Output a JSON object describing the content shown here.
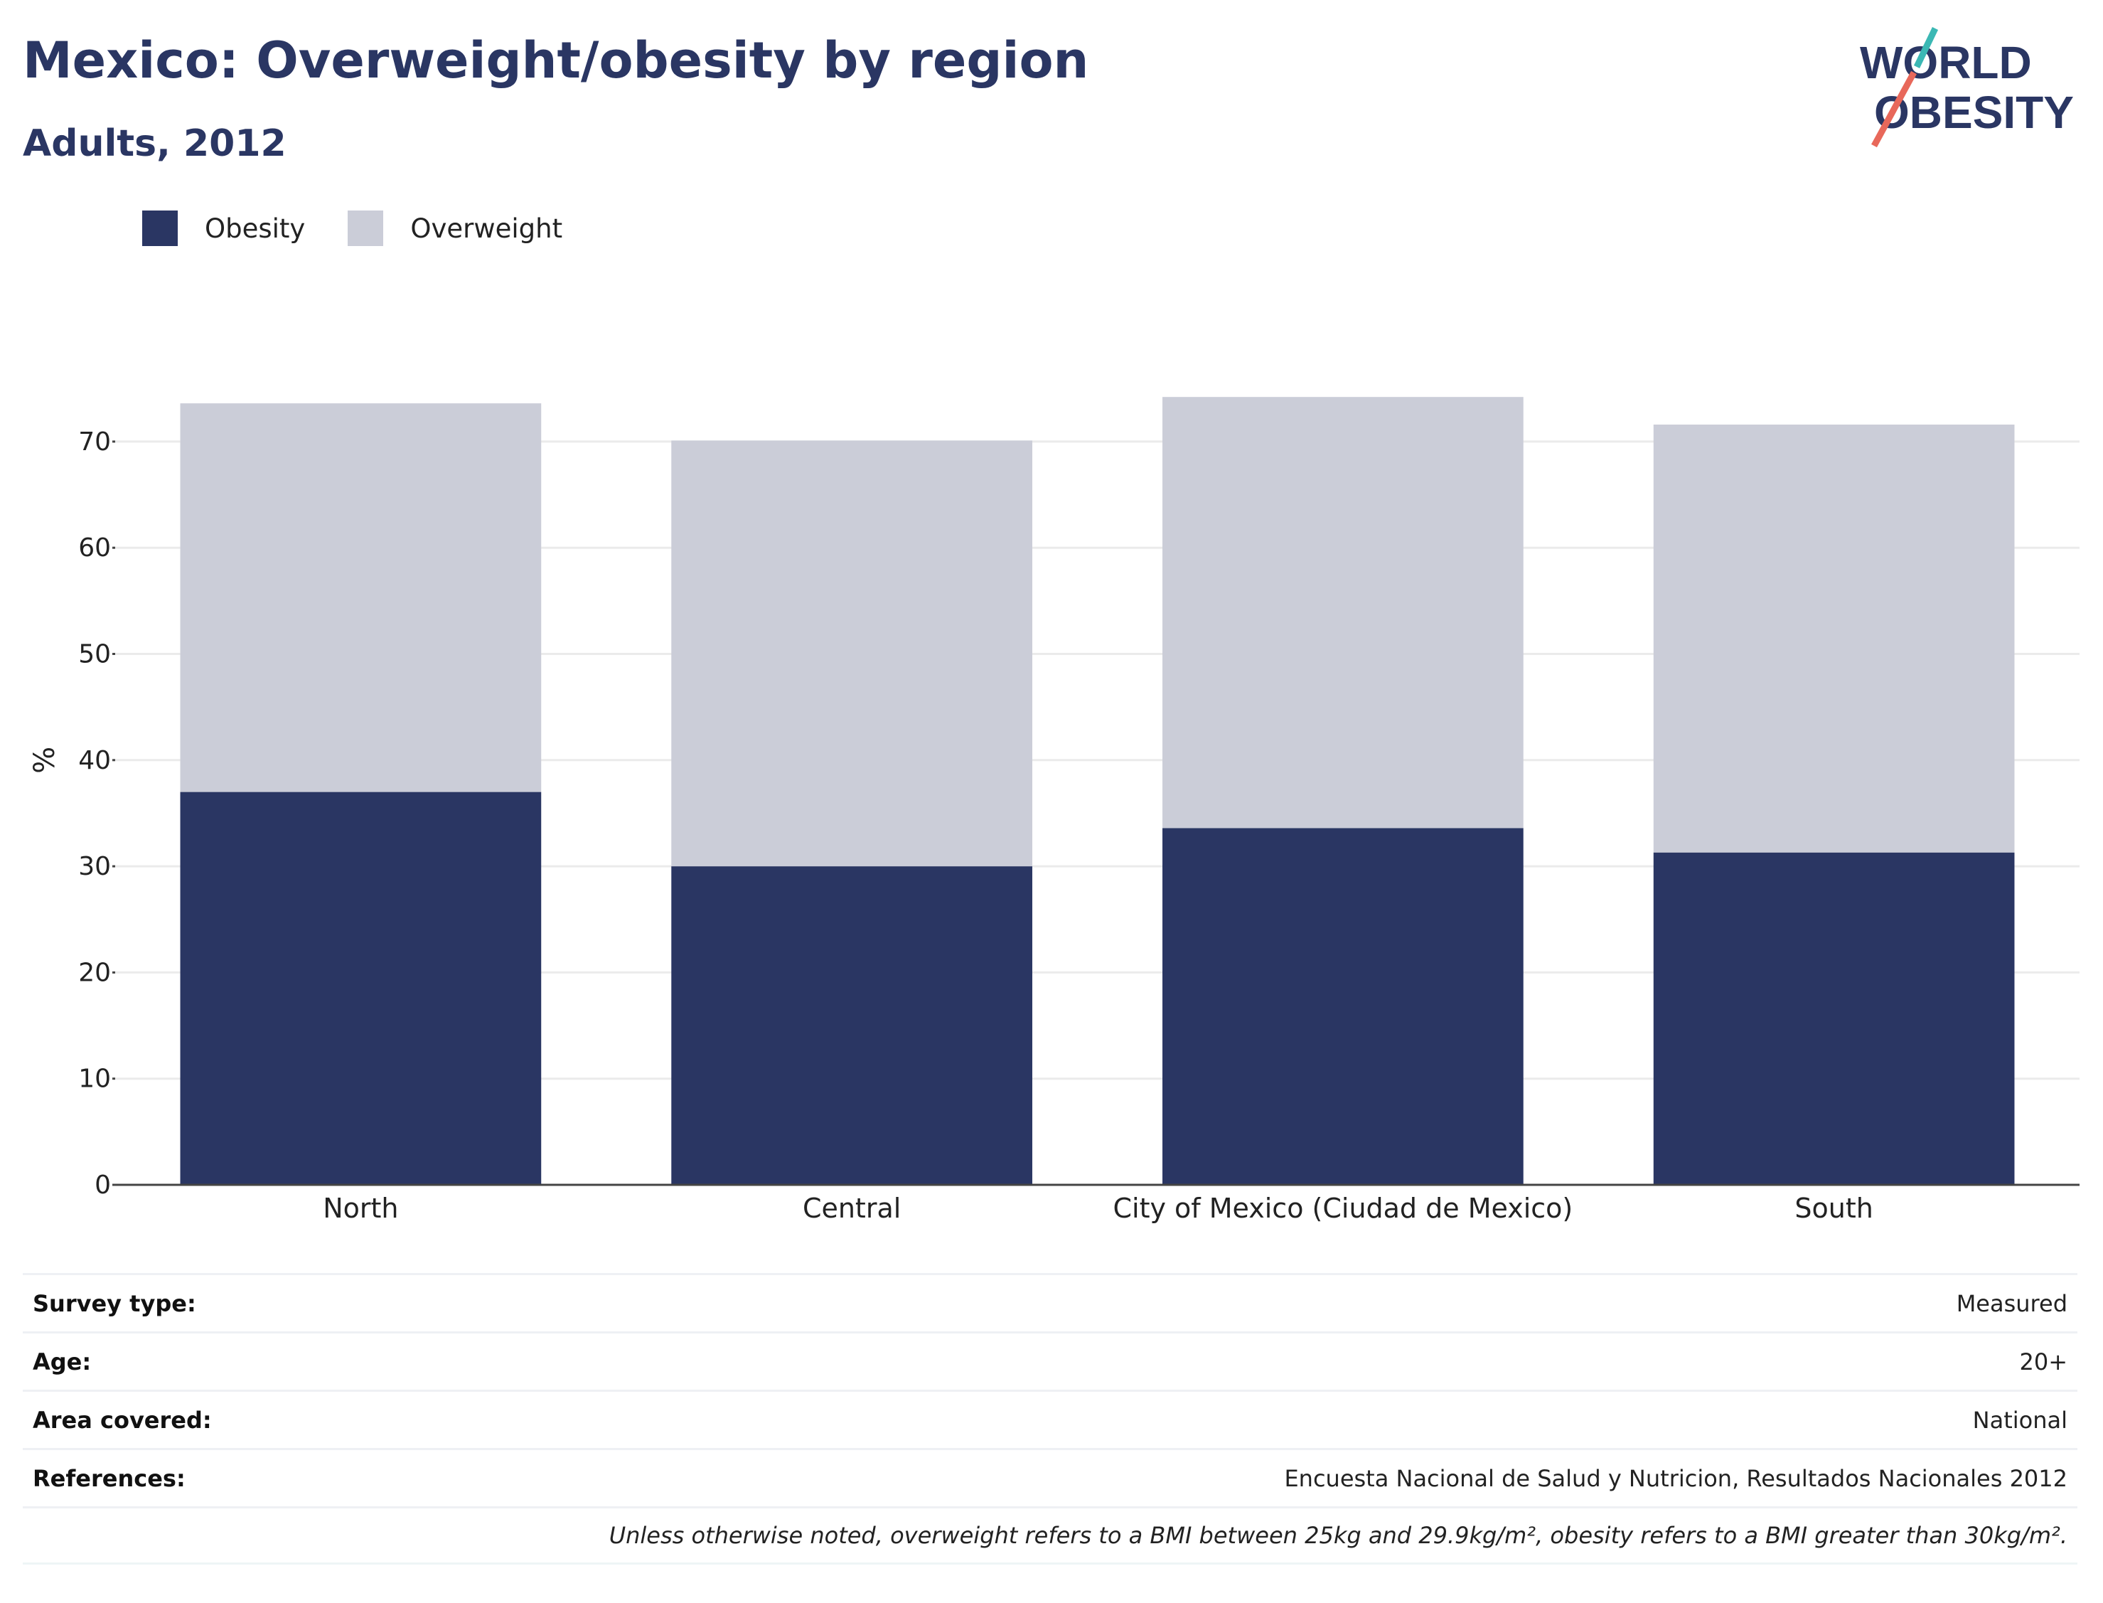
{
  "header": {
    "title": "Mexico: Overweight/obesity by region",
    "subtitle": "Adults, 2012"
  },
  "logo": {
    "line1": "WORLD",
    "line2": "OBESITY",
    "slash_teal": "#3bb8b4",
    "slash_coral": "#e8685a"
  },
  "colors": {
    "obesity": "#2a3663",
    "overweight": "#cbcdd8",
    "text": "#2a3663",
    "grid": "#ebebeb"
  },
  "legend": {
    "items": [
      {
        "label": "Obesity",
        "color": "#2a3663"
      },
      {
        "label": "Overweight",
        "color": "#cbcdd8"
      }
    ]
  },
  "chart_data": {
    "type": "bar",
    "stacked": true,
    "categories": [
      "North",
      "Central",
      "City of Mexico (Ciudad de Mexico)",
      "South"
    ],
    "series": [
      {
        "name": "Obesity",
        "values": [
          37.0,
          30.0,
          33.6,
          31.3
        ]
      },
      {
        "name": "Overweight",
        "values": [
          36.6,
          40.1,
          40.6,
          40.3
        ]
      }
    ],
    "totals": [
      73.6,
      70.1,
      74.2,
      71.6
    ],
    "ylabel": "%",
    "ylim": [
      0,
      80
    ],
    "yticks": [
      0,
      10,
      20,
      30,
      40,
      50,
      60,
      70
    ],
    "grid": true,
    "legend_position": "top-left"
  },
  "meta": {
    "rows": [
      {
        "label": "Survey type:",
        "value": "Measured"
      },
      {
        "label": "Age:",
        "value": "20+"
      },
      {
        "label": "Area covered:",
        "value": "National"
      },
      {
        "label": "References:",
        "value": "Encuesta Nacional de Salud y Nutricion, Resultados Nacionales 2012"
      }
    ],
    "note": "Unless otherwise noted, overweight refers to a BMI between 25kg and 29.9kg/m², obesity refers to a BMI greater than 30kg/m²."
  }
}
